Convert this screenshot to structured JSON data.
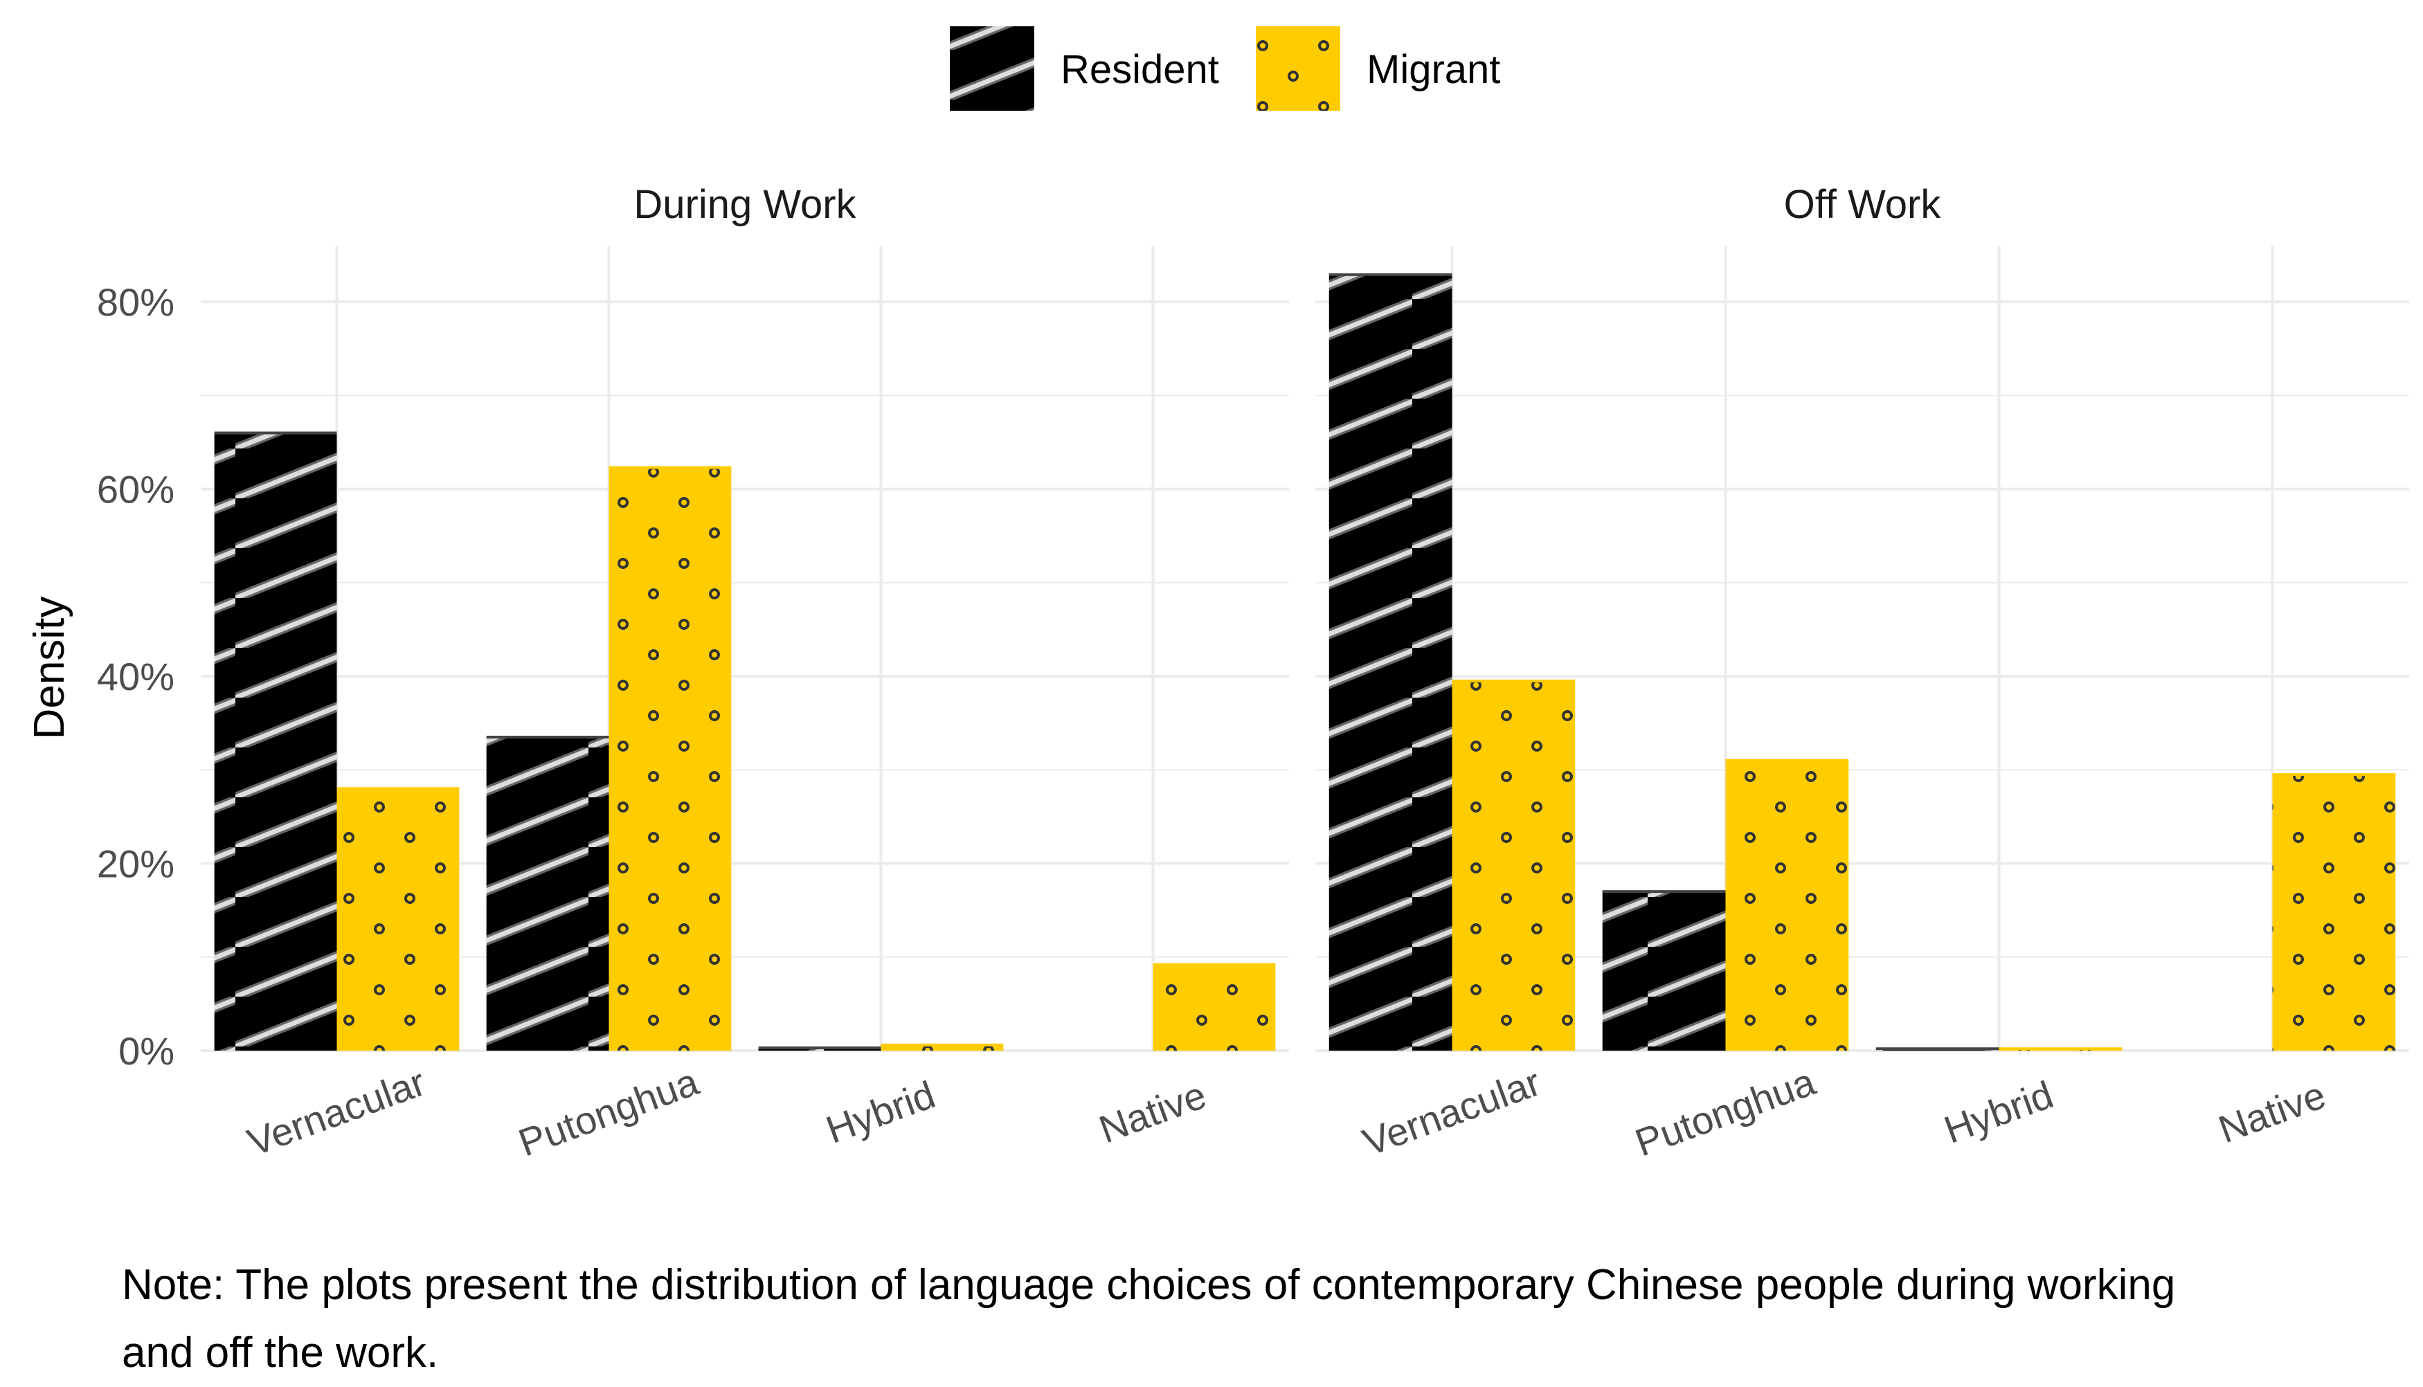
{
  "chart_data": {
    "type": "bar",
    "ylabel": "Density",
    "ylim": [
      0,
      0.86
    ],
    "yticks": [
      0,
      0.2,
      0.4,
      0.6,
      0.8
    ],
    "ytick_labels": [
      "0%",
      "20%",
      "40%",
      "60%",
      "80%"
    ],
    "legend": {
      "position": "top",
      "items": [
        {
          "name": "Resident",
          "fill": "#000000",
          "pattern": "stripes"
        },
        {
          "name": "Migrant",
          "fill": "#FFCC00",
          "pattern": "dots"
        }
      ]
    },
    "categories": [
      "Vernacular",
      "Putonghua",
      "Hybrid",
      "Native"
    ],
    "panels": [
      {
        "title": "During Work",
        "series": [
          {
            "name": "Resident",
            "values": [
              0.66,
              0.335,
              0.003,
              0.0
            ]
          },
          {
            "name": "Migrant",
            "values": [
              0.28,
              0.623,
              0.006,
              0.092
            ]
          }
        ]
      },
      {
        "title": "Off Work",
        "series": [
          {
            "name": "Resident",
            "values": [
              0.829,
              0.17,
              0.002,
              0.0
            ]
          },
          {
            "name": "Migrant",
            "values": [
              0.395,
              0.31,
              0.002,
              0.295
            ]
          }
        ]
      }
    ],
    "grid": true
  },
  "note": {
    "line1": "Note: The plots present the distribution of language choices of contemporary Chinese people during working",
    "line2": "and off the work."
  },
  "colors": {
    "resident": "#000000",
    "migrant": "#FFCC00",
    "grid": "#EBEBEB",
    "axis_text": "#4D4D4D",
    "stripe": "#CCCCCC",
    "dot": "#333333"
  }
}
